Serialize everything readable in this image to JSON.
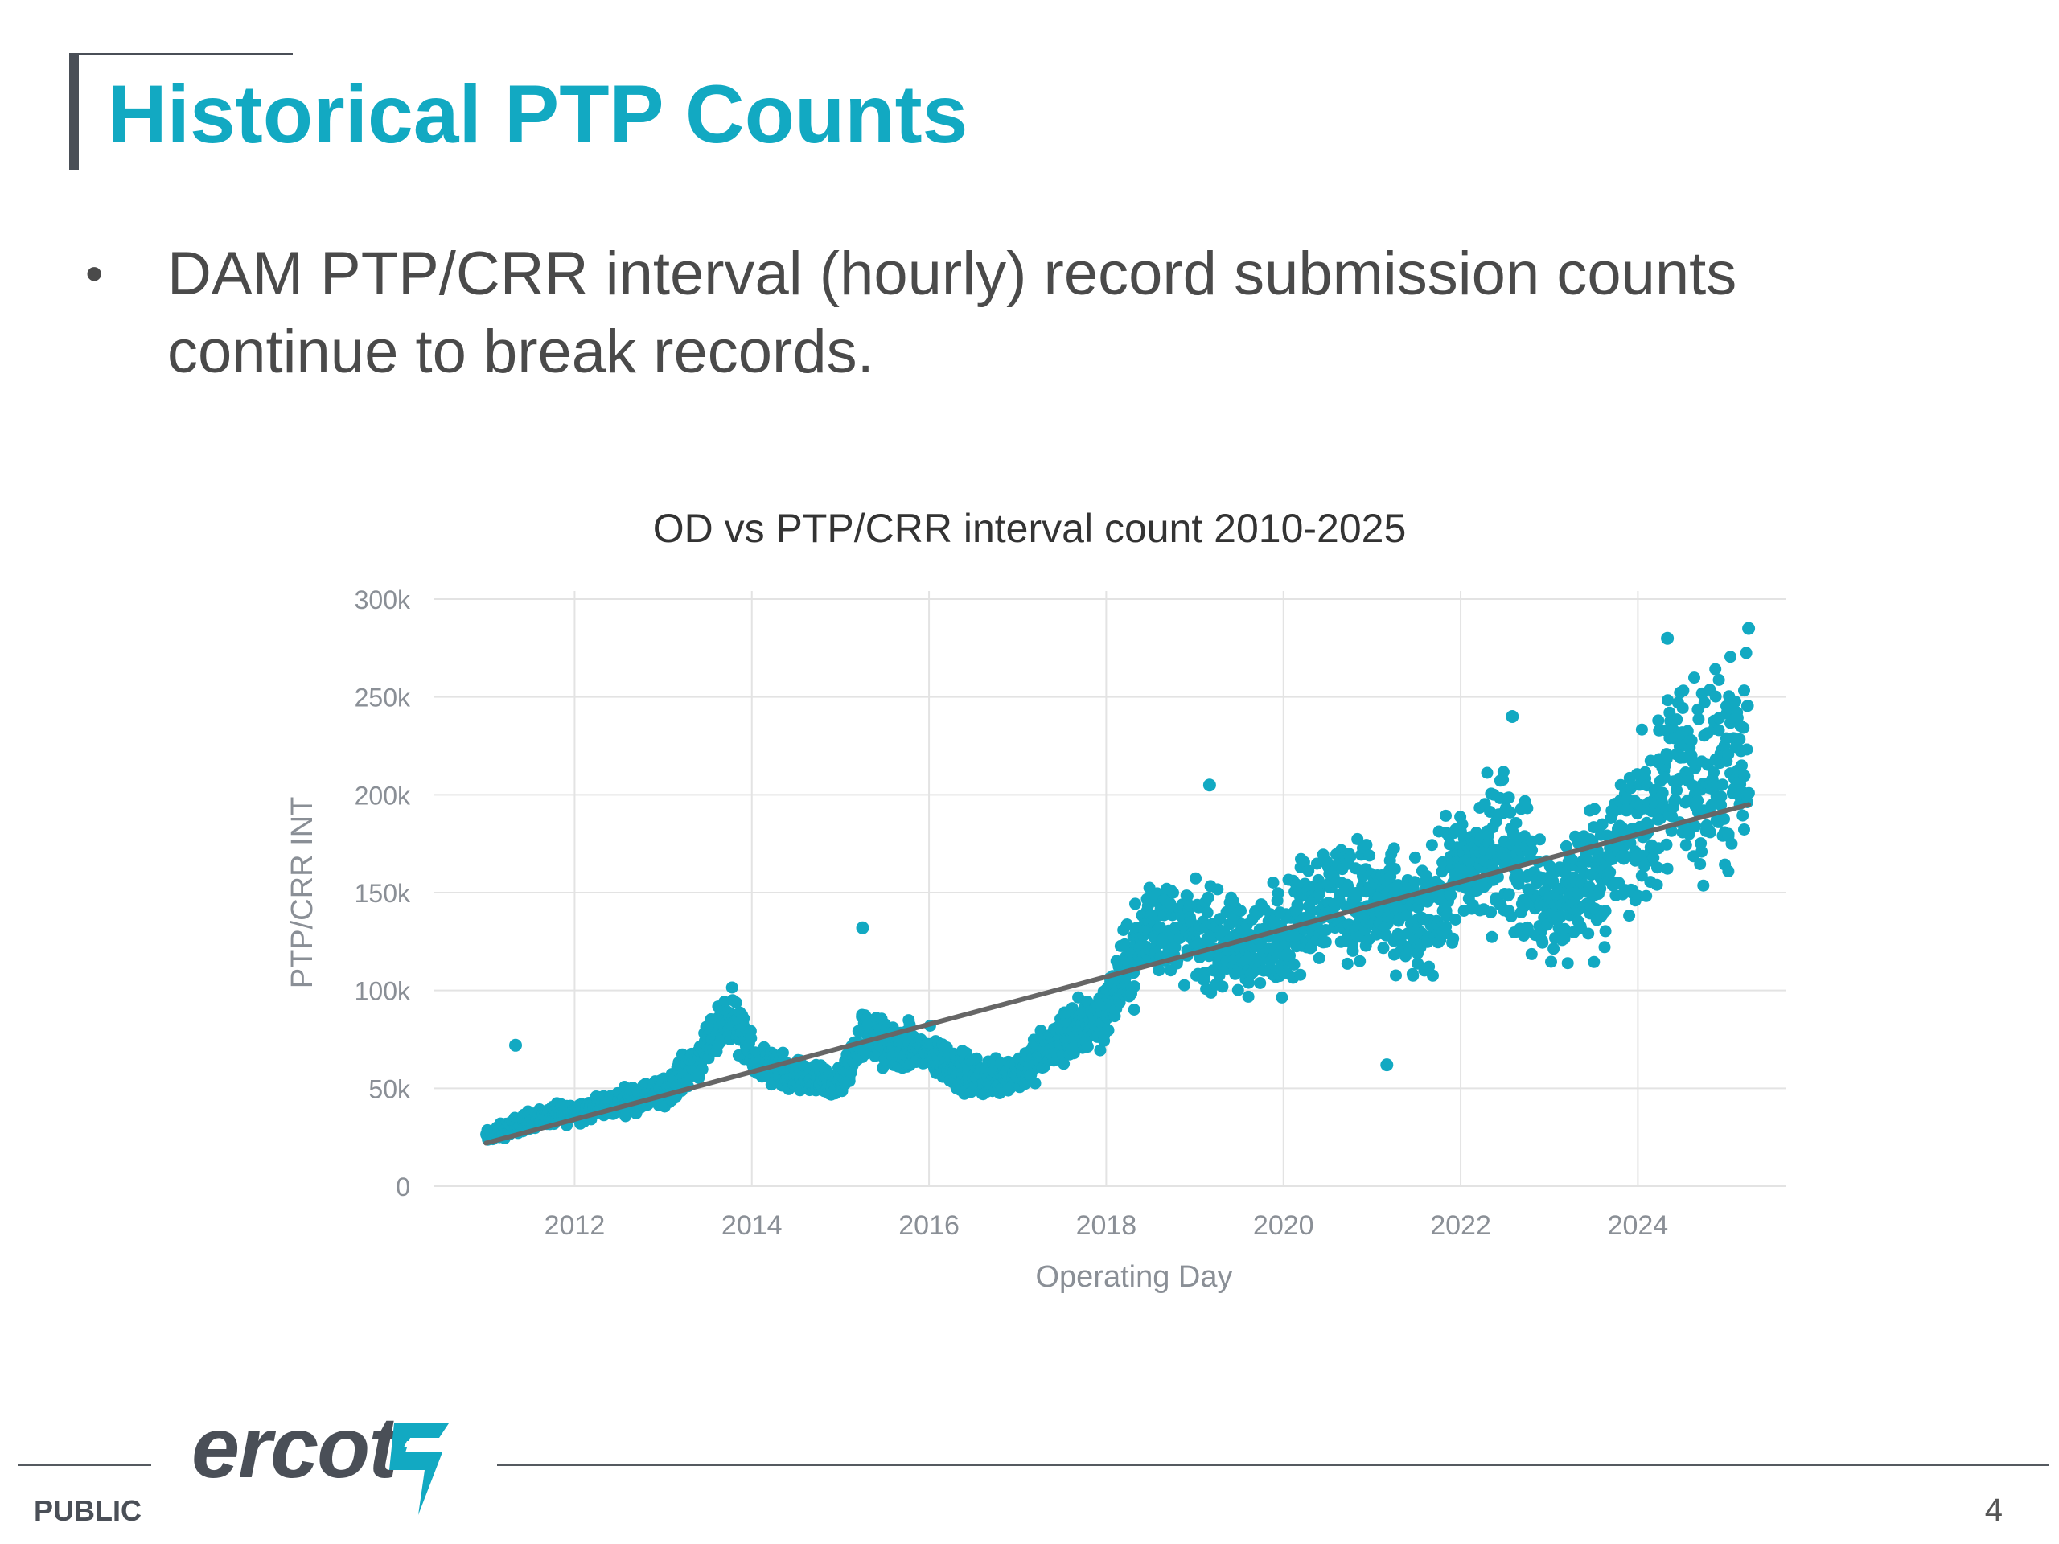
{
  "slide": {
    "title": "Historical PTP Counts",
    "bullets": [
      "DAM PTP/CRR interval (hourly) record submission counts continue to break records."
    ],
    "bullet_symbol": "•",
    "footer_classification": "PUBLIC",
    "logo_text": "ercot",
    "page_number": "4",
    "accent_color": "#12a9c2"
  },
  "chart_data": {
    "type": "scatter",
    "title": "OD vs PTP/CRR interval count 2010-2025",
    "xlabel": "Operating Day",
    "ylabel": "PTP/CRR INT",
    "xlim": [
      "2010-06",
      "2025-09"
    ],
    "ylim": [
      0,
      300000
    ],
    "x_ticks": [
      "2012",
      "2014",
      "2016",
      "2018",
      "2020",
      "2022",
      "2024"
    ],
    "y_ticks": [
      "0",
      "50k",
      "100k",
      "150k",
      "200k",
      "250k",
      "300k"
    ],
    "y_tick_values": [
      0,
      50000,
      100000,
      150000,
      200000,
      250000,
      300000
    ],
    "grid": true,
    "point_color": "#12a9c2",
    "trend_color": "#666666",
    "trendline": {
      "start": [
        "2011-01",
        22000
      ],
      "end": [
        "2025-04",
        195000
      ]
    },
    "series_profile": [
      [
        "2011-01",
        25000
      ],
      [
        "2011-07",
        34000
      ],
      [
        "2012-01",
        38000
      ],
      [
        "2012-07",
        43000
      ],
      [
        "2013-01",
        48000
      ],
      [
        "2013-07",
        70000
      ],
      [
        "2013-10",
        90000
      ],
      [
        "2014-01",
        65000
      ],
      [
        "2014-07",
        55000
      ],
      [
        "2015-01",
        52000
      ],
      [
        "2015-04",
        78000
      ],
      [
        "2015-07",
        72000
      ],
      [
        "2016-01",
        68000
      ],
      [
        "2016-07",
        55000
      ],
      [
        "2017-01",
        58000
      ],
      [
        "2017-07",
        75000
      ],
      [
        "2018-01",
        90000
      ],
      [
        "2018-07",
        135000
      ],
      [
        "2019-01",
        128000
      ],
      [
        "2019-07",
        120000
      ],
      [
        "2020-01",
        130000
      ],
      [
        "2020-07",
        150000
      ],
      [
        "2021-01",
        145000
      ],
      [
        "2021-07",
        132000
      ],
      [
        "2022-01",
        160000
      ],
      [
        "2022-07",
        175000
      ],
      [
        "2023-01",
        140000
      ],
      [
        "2023-07",
        160000
      ],
      [
        "2024-01",
        180000
      ],
      [
        "2024-07",
        215000
      ],
      [
        "2025-04",
        210000
      ]
    ],
    "outliers": [
      [
        "2011-05",
        72000
      ],
      [
        "2015-04",
        132000
      ],
      [
        "2019-03",
        205000
      ],
      [
        "2021-03",
        62000
      ],
      [
        "2022-08",
        240000
      ],
      [
        "2024-05",
        280000
      ],
      [
        "2025-04",
        285000
      ]
    ]
  }
}
